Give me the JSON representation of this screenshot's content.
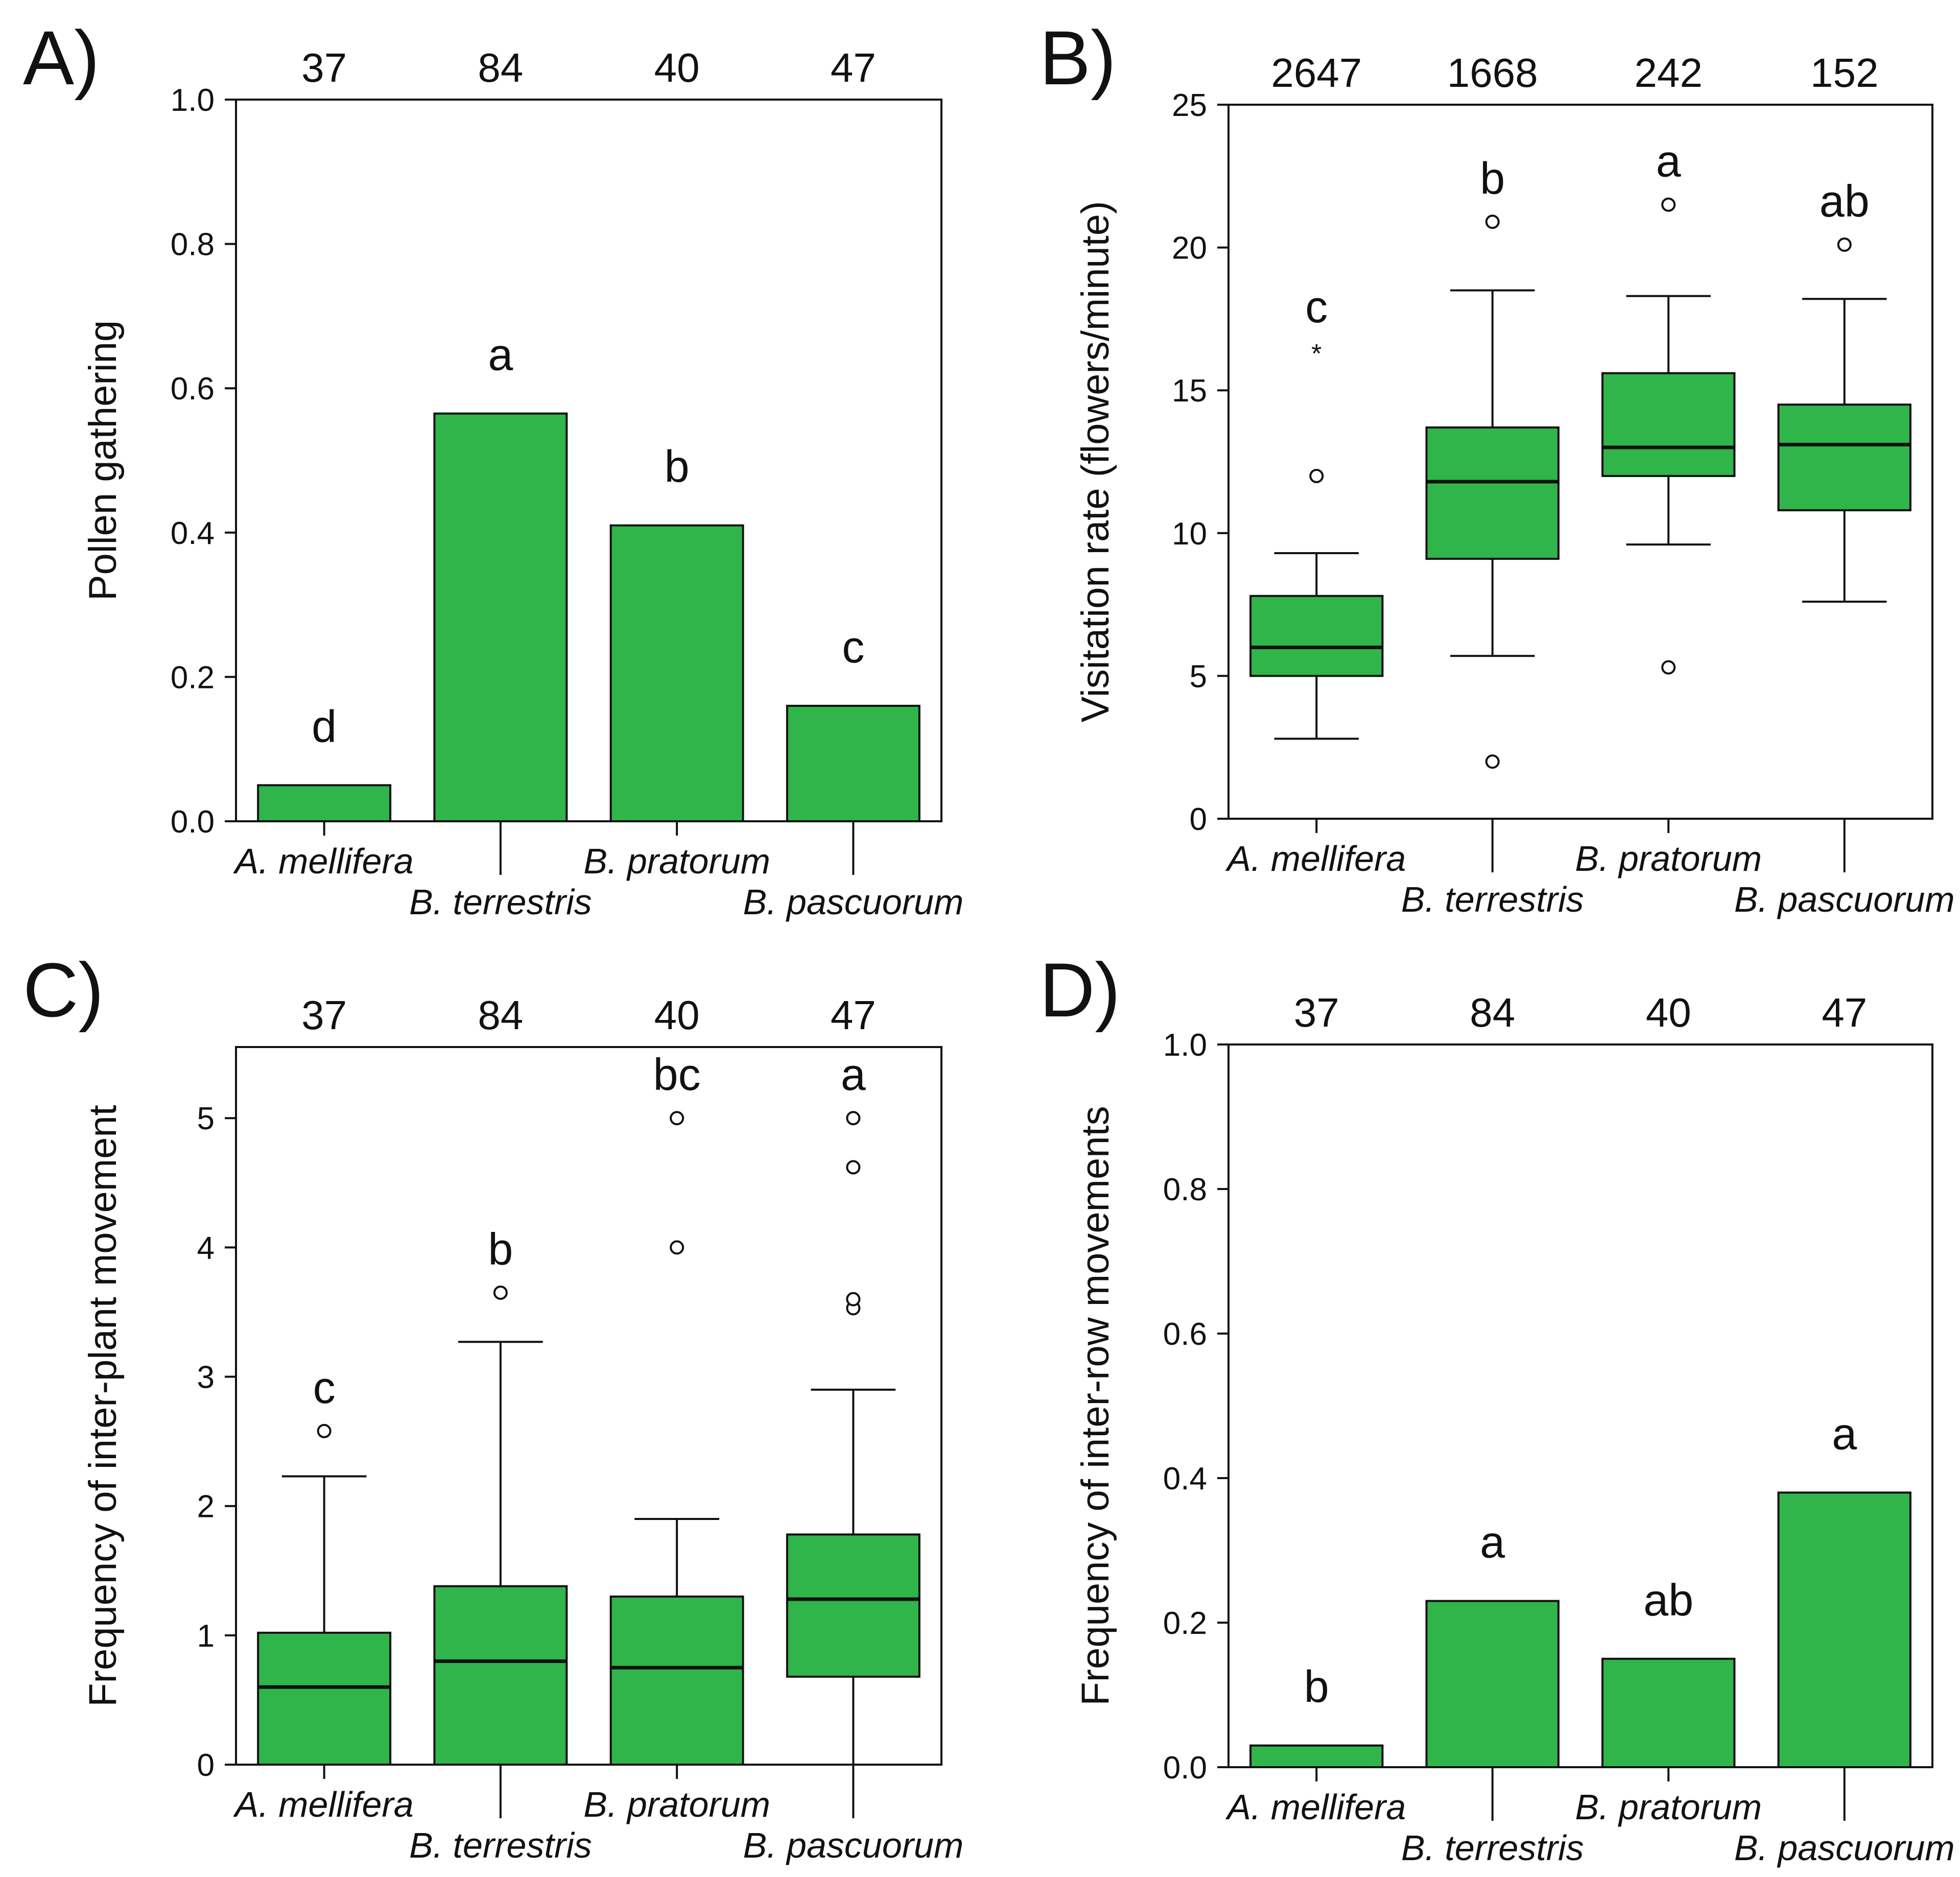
{
  "figure": {
    "bar_color": "#2fb54a",
    "stroke_color": "#111111"
  },
  "chart_data": [
    {
      "id": "A",
      "panel_label": "A)",
      "type": "bar",
      "categories": [
        "A. mellifera",
        "B. terrestris",
        "B. pratorum",
        "B. pascuorum"
      ],
      "sample_sizes": [
        "37",
        "84",
        "40",
        "47"
      ],
      "values": [
        0.05,
        0.565,
        0.41,
        0.16
      ],
      "letters": [
        "d",
        "a",
        "b",
        "c"
      ],
      "ylabel": "Pollen gathering",
      "ylim": [
        0,
        1.0
      ],
      "yticks": [
        0.0,
        0.2,
        0.4,
        0.6,
        0.8,
        1.0
      ],
      "ytick_labels": [
        "0.0",
        "0.2",
        "0.4",
        "0.6",
        "0.8",
        "1.0"
      ]
    },
    {
      "id": "B",
      "panel_label": "B)",
      "type": "box",
      "categories": [
        "A. mellifera",
        "B. terrestris",
        "B. pratorum",
        "B. pascuorum"
      ],
      "sample_sizes": [
        "2647",
        "1668",
        "242",
        "152"
      ],
      "letters": [
        "c",
        "b",
        "a",
        "ab"
      ],
      "boxes": [
        {
          "whisker_low": 2.8,
          "q1": 5.0,
          "median": 6.0,
          "q3": 7.8,
          "whisker_high": 9.3,
          "outliers": [
            12.0
          ],
          "extremes": [
            16.4
          ]
        },
        {
          "whisker_low": 5.7,
          "q1": 9.1,
          "median": 11.8,
          "q3": 13.7,
          "whisker_high": 18.5,
          "outliers": [
            2.0,
            20.9
          ],
          "extremes": []
        },
        {
          "whisker_low": 9.6,
          "q1": 12.0,
          "median": 13.0,
          "q3": 15.6,
          "whisker_high": 18.3,
          "outliers": [
            5.3,
            21.5
          ],
          "extremes": []
        },
        {
          "whisker_low": 7.6,
          "q1": 10.8,
          "median": 13.1,
          "q3": 14.5,
          "whisker_high": 18.2,
          "outliers": [
            20.1
          ],
          "extremes": []
        }
      ],
      "ylabel": "Visitation rate (flowers/minute)",
      "ylim": [
        0,
        25
      ],
      "yticks": [
        0,
        5,
        10,
        15,
        20,
        25
      ],
      "ytick_labels": [
        "0",
        "5",
        "10",
        "15",
        "20",
        "25"
      ]
    },
    {
      "id": "C",
      "panel_label": "C)",
      "type": "box",
      "categories": [
        "A. mellifera",
        "B. terrestris",
        "B. pratorum",
        "B. pascuorum"
      ],
      "sample_sizes": [
        "37",
        "84",
        "40",
        "47"
      ],
      "letters": [
        "c",
        "b",
        "bc",
        "a"
      ],
      "boxes": [
        {
          "whisker_low": 0.0,
          "q1": 0.0,
          "median": 0.6,
          "q3": 1.02,
          "whisker_high": 2.23,
          "outliers": [
            2.58
          ],
          "extremes": []
        },
        {
          "whisker_low": 0.0,
          "q1": 0.0,
          "median": 0.8,
          "q3": 1.38,
          "whisker_high": 3.27,
          "outliers": [
            3.65
          ],
          "extremes": []
        },
        {
          "whisker_low": 0.0,
          "q1": 0.0,
          "median": 0.75,
          "q3": 1.3,
          "whisker_high": 1.9,
          "outliers": [
            4.0,
            5.0
          ],
          "extremes": []
        },
        {
          "whisker_low": 0.0,
          "q1": 0.68,
          "median": 1.28,
          "q3": 1.78,
          "whisker_high": 2.9,
          "outliers": [
            3.53,
            3.6,
            4.62,
            5.0
          ],
          "extremes": []
        }
      ],
      "ylabel": "Frequency of inter-plant movement",
      "ylim": [
        0,
        5.55
      ],
      "yticks": [
        0,
        1,
        2,
        3,
        4,
        5
      ],
      "ytick_labels": [
        "0",
        "1",
        "2",
        "3",
        "4",
        "5"
      ]
    },
    {
      "id": "D",
      "panel_label": "D)",
      "type": "bar",
      "categories": [
        "A. mellifera",
        "B. terrestris",
        "B. pratorum",
        "B. pascuorum"
      ],
      "sample_sizes": [
        "37",
        "84",
        "40",
        "47"
      ],
      "values": [
        0.03,
        0.23,
        0.15,
        0.38
      ],
      "letters": [
        "b",
        "a",
        "ab",
        "a"
      ],
      "ylabel": "Frequency of inter-row movements",
      "ylim": [
        0,
        1.0
      ],
      "yticks": [
        0.0,
        0.2,
        0.4,
        0.6,
        0.8,
        1.0
      ],
      "ytick_labels": [
        "0.0",
        "0.2",
        "0.4",
        "0.6",
        "0.8",
        "1.0"
      ]
    }
  ]
}
